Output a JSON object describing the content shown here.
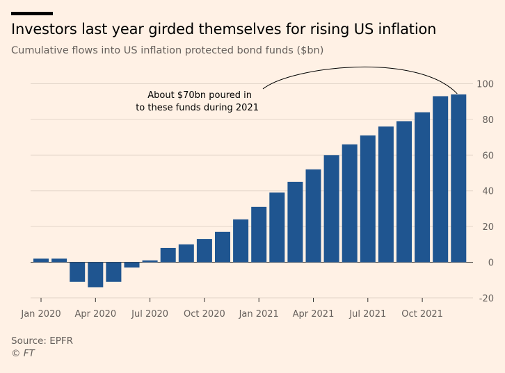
{
  "header": {
    "title": "Investors last year girded themselves for rising US inflation",
    "subtitle": "Cumulative flows into US inflation protected bond funds ($bn)"
  },
  "footer": {
    "source": "Source: EPFR",
    "credit": "© FT"
  },
  "chart_data": {
    "type": "bar",
    "title": "Investors last year girded themselves for rising US inflation",
    "subtitle": "Cumulative flows into US inflation protected bond funds ($bn)",
    "xlabel": "",
    "ylabel": "",
    "categories": [
      "Jan 2020",
      "Feb 2020",
      "Mar 2020",
      "Apr 2020",
      "May 2020",
      "Jun 2020",
      "Jul 2020",
      "Aug 2020",
      "Sep 2020",
      "Oct 2020",
      "Nov 2020",
      "Dec 2020",
      "Jan 2021",
      "Feb 2021",
      "Mar 2021",
      "Apr 2021",
      "May 2021",
      "Jun 2021",
      "Jul 2021",
      "Aug 2021",
      "Sep 2021",
      "Oct 2021",
      "Nov 2021",
      "Dec 2021"
    ],
    "values": [
      2,
      2,
      -11,
      -14,
      -11,
      -3,
      1,
      8,
      10,
      13,
      17,
      24,
      31,
      39,
      45,
      52,
      60,
      66,
      71,
      76,
      79,
      84,
      93,
      94
    ],
    "x_tick_labels": [
      {
        "label": "Jan 2020",
        "index": 0
      },
      {
        "label": "Apr 2020",
        "index": 3
      },
      {
        "label": "Jul 2020",
        "index": 6
      },
      {
        "label": "Oct 2020",
        "index": 9
      },
      {
        "label": "Jan 2021",
        "index": 12
      },
      {
        "label": "Apr 2021",
        "index": 15
      },
      {
        "label": "Jul 2021",
        "index": 18
      },
      {
        "label": "Oct 2021",
        "index": 21
      }
    ],
    "y_ticks": [
      -20,
      0,
      20,
      40,
      60,
      80,
      100
    ],
    "ylim": [
      -20,
      100
    ],
    "y_axis_side": "right",
    "grid": true,
    "bar_color": "#1f5590",
    "annotation": {
      "lines": [
        "About $70bn poured in",
        "to these funds during 2021"
      ],
      "points_to": "Dec 2021"
    }
  }
}
